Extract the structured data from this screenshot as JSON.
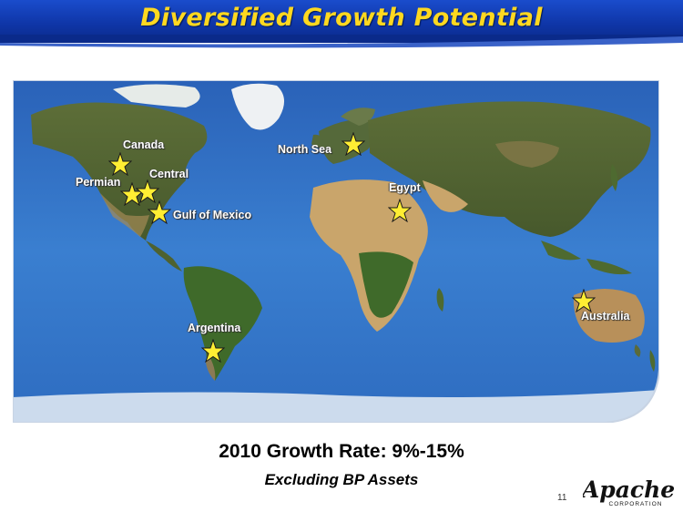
{
  "slide": {
    "title": "Diversified Growth Potential",
    "growth_rate": "2010 Growth Rate: 9%-15%",
    "subtitle": "Excluding BP Assets",
    "page_number": "11"
  },
  "logo": {
    "wordmark": "Apache",
    "tagline": "CORPORATION"
  },
  "map": {
    "locations": [
      {
        "name": "Canada"
      },
      {
        "name": "Permian"
      },
      {
        "name": "Central"
      },
      {
        "name": "Gulf of Mexico"
      },
      {
        "name": "North Sea"
      },
      {
        "name": "Egypt"
      },
      {
        "name": "Argentina"
      },
      {
        "name": "Australia"
      }
    ],
    "colors": {
      "ocean": "#2f6fc4",
      "land": "#6b7a3a",
      "desert": "#c9a56b",
      "ice": "#f2f4f6",
      "star": "#ffee33",
      "banner": "#1140b4",
      "title": "#ffd820"
    }
  }
}
